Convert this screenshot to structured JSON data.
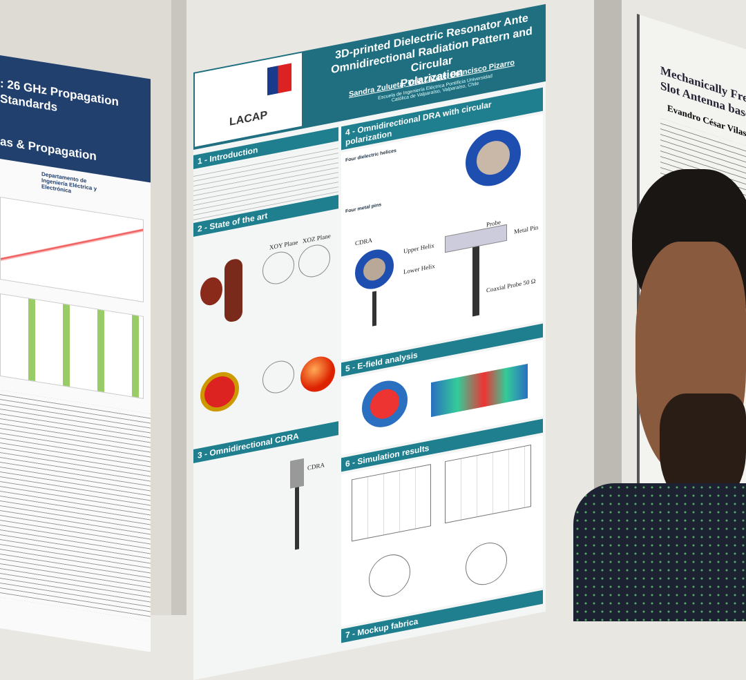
{
  "left_poster": {
    "title_lines": [
      ": 26 GHz Propagation",
      "Standards",
      "as & Propagation"
    ],
    "department": "Departamento de Ingeniería Eléctrica y Electrónica"
  },
  "center_poster": {
    "title_lines": [
      "3D-printed Dielectric Resonator Ante",
      "Omnidirectional Radiation Pattern and Circular",
      "Polarization"
    ],
    "authors": "Sandra Zulueta, Yair Zárate, Francisco Pizarro",
    "affiliation": "Escuela de Ingeniería Eléctrica Pontificia Universidad Católica de Valparaíso, Valparaíso, Chile",
    "logo": "LACAP",
    "sections": [
      "1 - Introduction",
      "2 - State of the art",
      "3 - Omnidirectional CDRA",
      "4 - Omnidirectional DRA with circular polarization",
      "5 - E-field analysis",
      "6 - Simulation results",
      "7 - Mockup fabrica"
    ],
    "section4_text": [
      "Four dielectric helices",
      "Four metal pins"
    ],
    "labels": [
      "CDRA",
      "Upper Helix",
      "Lower Helix",
      "Probe",
      "Metal Pin",
      "Coaxial Probe 50 Ω",
      "XOY Plane",
      "XOZ Plane"
    ]
  },
  "right_poster": {
    "title_lines": [
      "Mechanically Frequency R",
      "Slot Antenna based on EN"
    ],
    "author": "Evandro César Vilas Boas,"
  }
}
